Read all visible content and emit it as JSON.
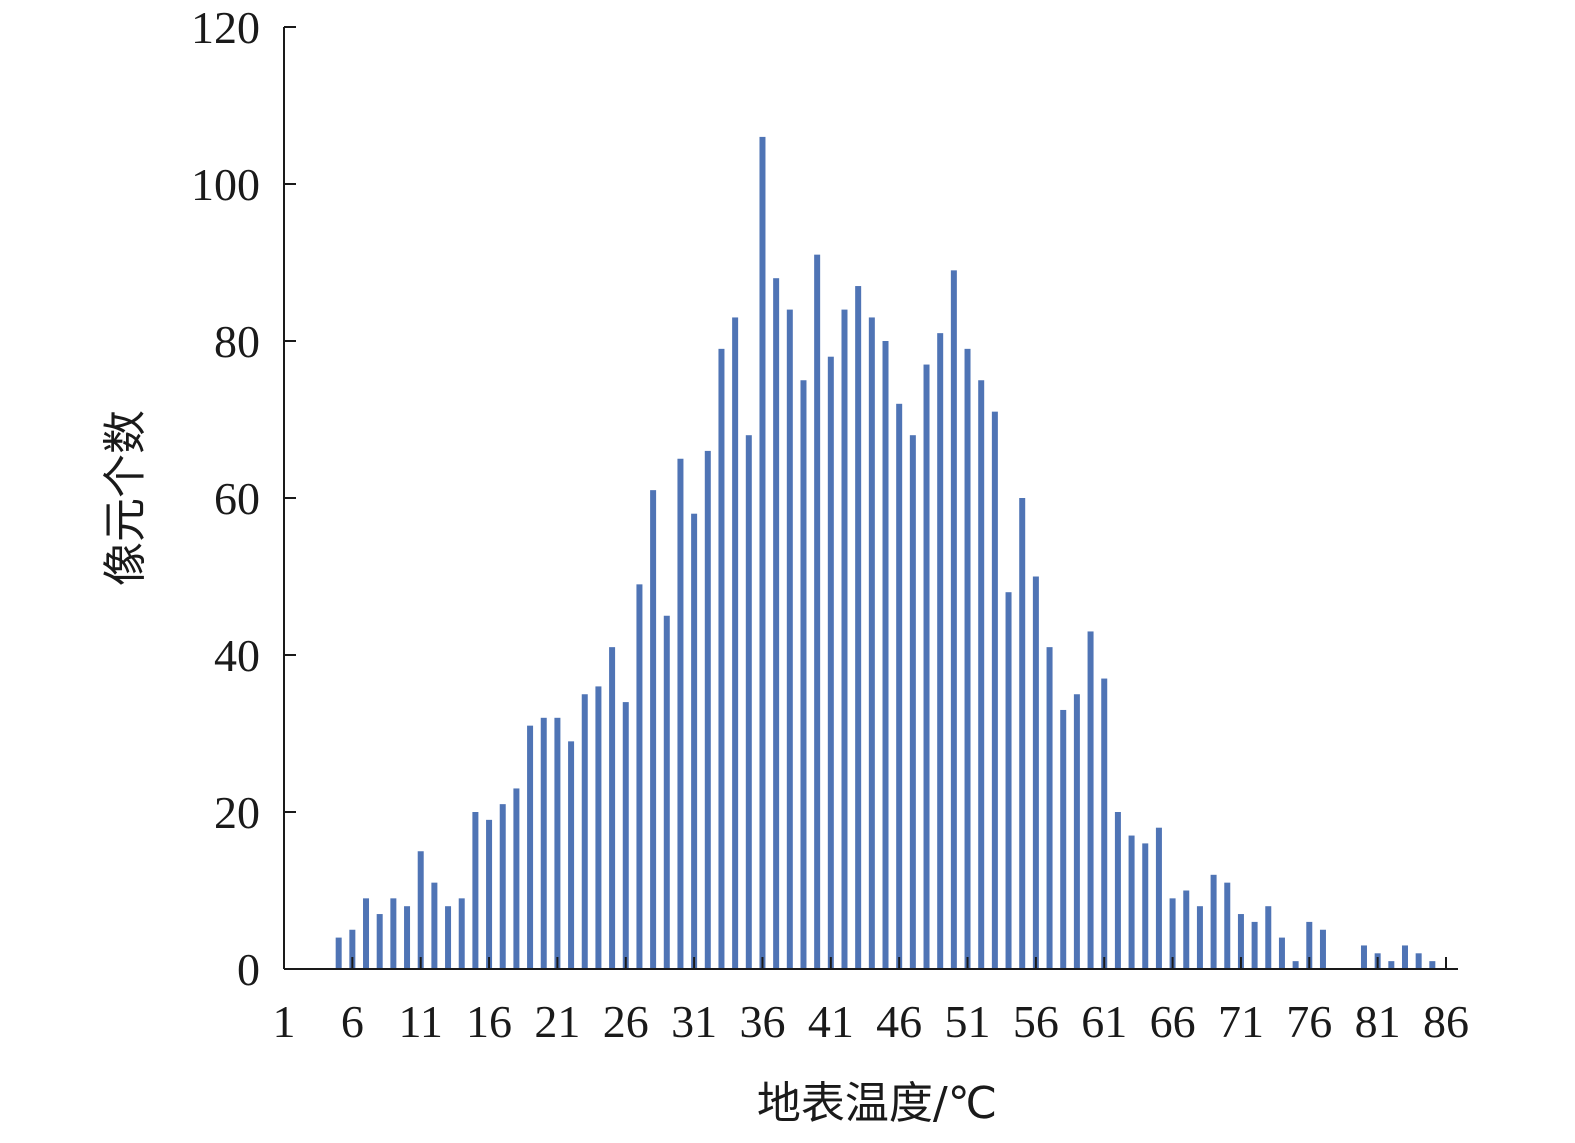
{
  "chart_data": {
    "type": "bar",
    "title": "",
    "xlabel": "地表温度/℃",
    "ylabel": "像元个数",
    "ylim": [
      0,
      120
    ],
    "xlim": [
      1,
      86
    ],
    "y_ticks": [
      "0",
      "20",
      "40",
      "60",
      "80",
      "100",
      "120"
    ],
    "x_ticks": [
      "1",
      "6",
      "11",
      "16",
      "21",
      "26",
      "31",
      "36",
      "41",
      "46",
      "51",
      "56",
      "61",
      "66",
      "71",
      "76",
      "81",
      "86"
    ],
    "categories": [
      5,
      6,
      7,
      8,
      9,
      10,
      11,
      12,
      13,
      14,
      15,
      16,
      17,
      18,
      19,
      20,
      21,
      22,
      23,
      24,
      25,
      26,
      27,
      28,
      29,
      30,
      31,
      32,
      33,
      34,
      35,
      36,
      37,
      38,
      39,
      40,
      41,
      42,
      43,
      44,
      45,
      46,
      47,
      48,
      49,
      50,
      51,
      52,
      53,
      54,
      55,
      56,
      57,
      58,
      59,
      60,
      61,
      62,
      63,
      64,
      65,
      66,
      67,
      68,
      69,
      70,
      71,
      72,
      73,
      74,
      75,
      76,
      77,
      78,
      79,
      80,
      81,
      82,
      83,
      84,
      85,
      86
    ],
    "values": [
      4,
      5,
      9,
      7,
      9,
      8,
      15,
      11,
      8,
      9,
      20,
      19,
      21,
      23,
      31,
      32,
      32,
      29,
      35,
      36,
      41,
      34,
      49,
      61,
      45,
      65,
      58,
      66,
      79,
      83,
      68,
      106,
      88,
      84,
      75,
      91,
      78,
      84,
      87,
      83,
      80,
      72,
      68,
      77,
      81,
      89,
      79,
      75,
      71,
      48,
      60,
      50,
      41,
      33,
      35,
      43,
      37,
      20,
      17,
      16,
      18,
      9,
      10,
      8,
      12,
      11,
      7,
      6,
      8,
      4,
      1,
      6,
      5,
      0,
      0,
      3,
      2,
      1,
      3,
      2,
      1,
      0
    ],
    "bar_color": "#4f74b5",
    "grid": false,
    "legend": "none"
  }
}
